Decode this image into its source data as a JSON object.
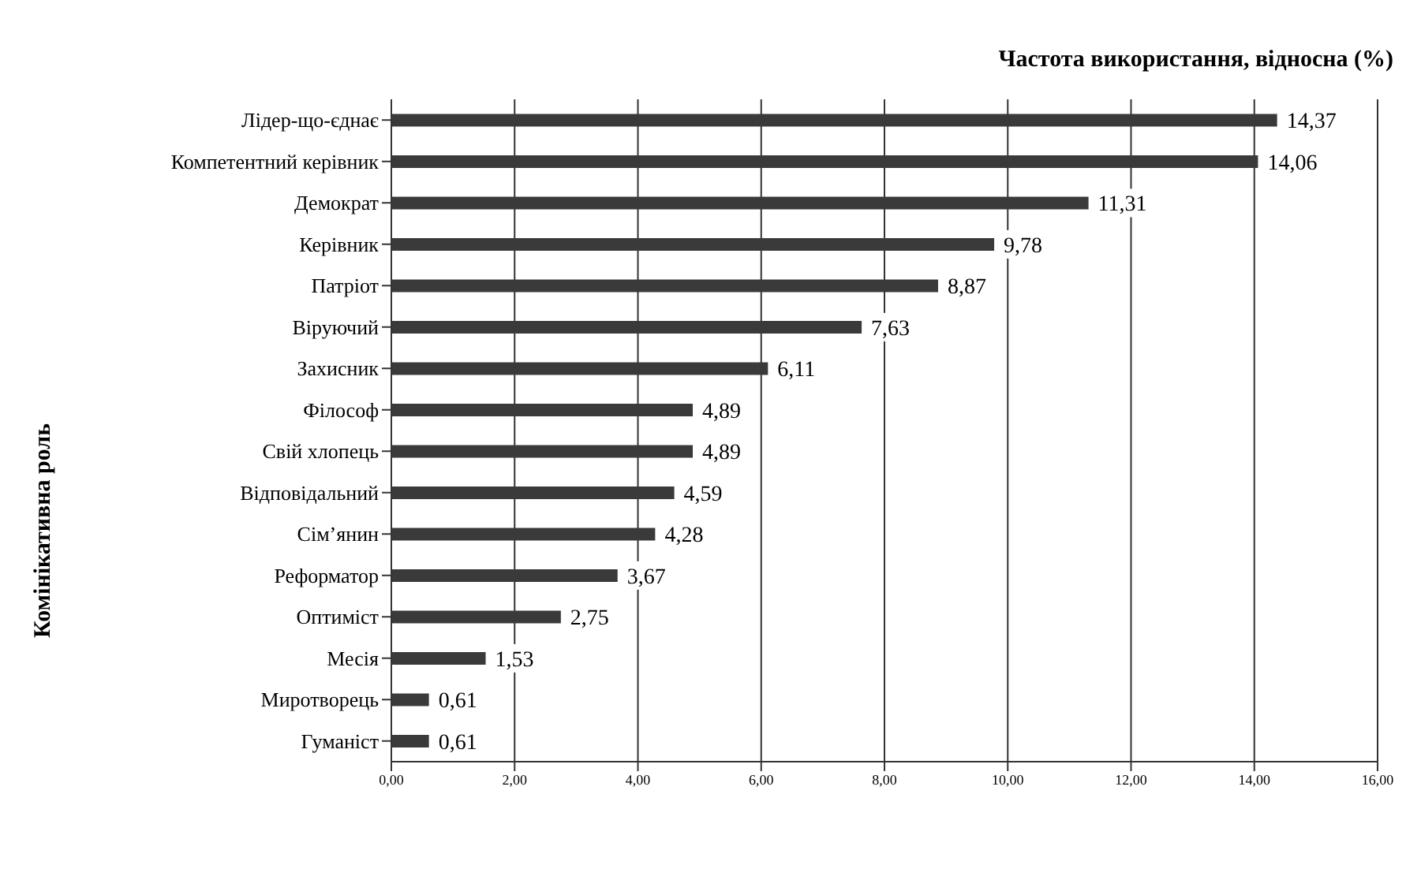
{
  "chart_data": {
    "type": "bar",
    "orientation": "horizontal",
    "xlabel": "Частота використання, відносна (%)",
    "ylabel": "Комінікативна роль",
    "categories": [
      "Лідер-що-єднає",
      "Компетентний керівник",
      "Демократ",
      "Керівник",
      "Патріот",
      "Віруючий",
      "Захисник",
      "Філософ",
      "Свій хлопець",
      "Відповідальний",
      "Сім’янин",
      "Реформатор",
      "Оптиміст",
      "Месія",
      "Миротворець",
      "Гуманіст"
    ],
    "values": [
      14.37,
      14.06,
      11.31,
      9.78,
      8.87,
      7.63,
      6.11,
      4.89,
      4.89,
      4.59,
      4.28,
      3.67,
      2.75,
      1.53,
      0.61,
      0.61
    ],
    "value_labels": [
      "14,37",
      "14,06",
      "11,31",
      "9,78",
      "8,87",
      "7,63",
      "6,11",
      "4,89",
      "4,89",
      "4,59",
      "4,28",
      "3,67",
      "2,75",
      "1,53",
      "0,61",
      "0,61"
    ],
    "color": "#3a3a3a",
    "xlim": [
      0,
      16
    ],
    "xticks": [
      {
        "value": 0,
        "label": "0,00"
      },
      {
        "value": 2,
        "label": "2,00"
      },
      {
        "value": 4,
        "label": "4,00"
      },
      {
        "value": 6,
        "label": "6,00"
      },
      {
        "value": 8,
        "label": "8,00"
      },
      {
        "value": 10,
        "label": "10,00"
      },
      {
        "value": 12,
        "label": "12,00"
      },
      {
        "value": 14,
        "label": "14,00"
      },
      {
        "value": 16,
        "label": "16,00"
      }
    ],
    "grid": "x",
    "legend": false
  }
}
